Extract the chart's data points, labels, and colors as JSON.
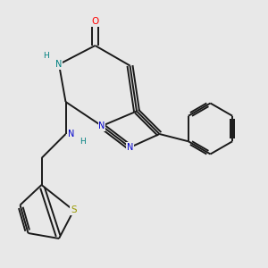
{
  "background_color": "#e8e8e8",
  "bond_color": "#1a1a1a",
  "atom_colors": {
    "O": "#ff0000",
    "N": "#0000cc",
    "S": "#999900",
    "H": "#008080"
  },
  "figsize": [
    3.0,
    3.0
  ],
  "dpi": 100,
  "lw": 1.4,
  "fs": 7.0
}
